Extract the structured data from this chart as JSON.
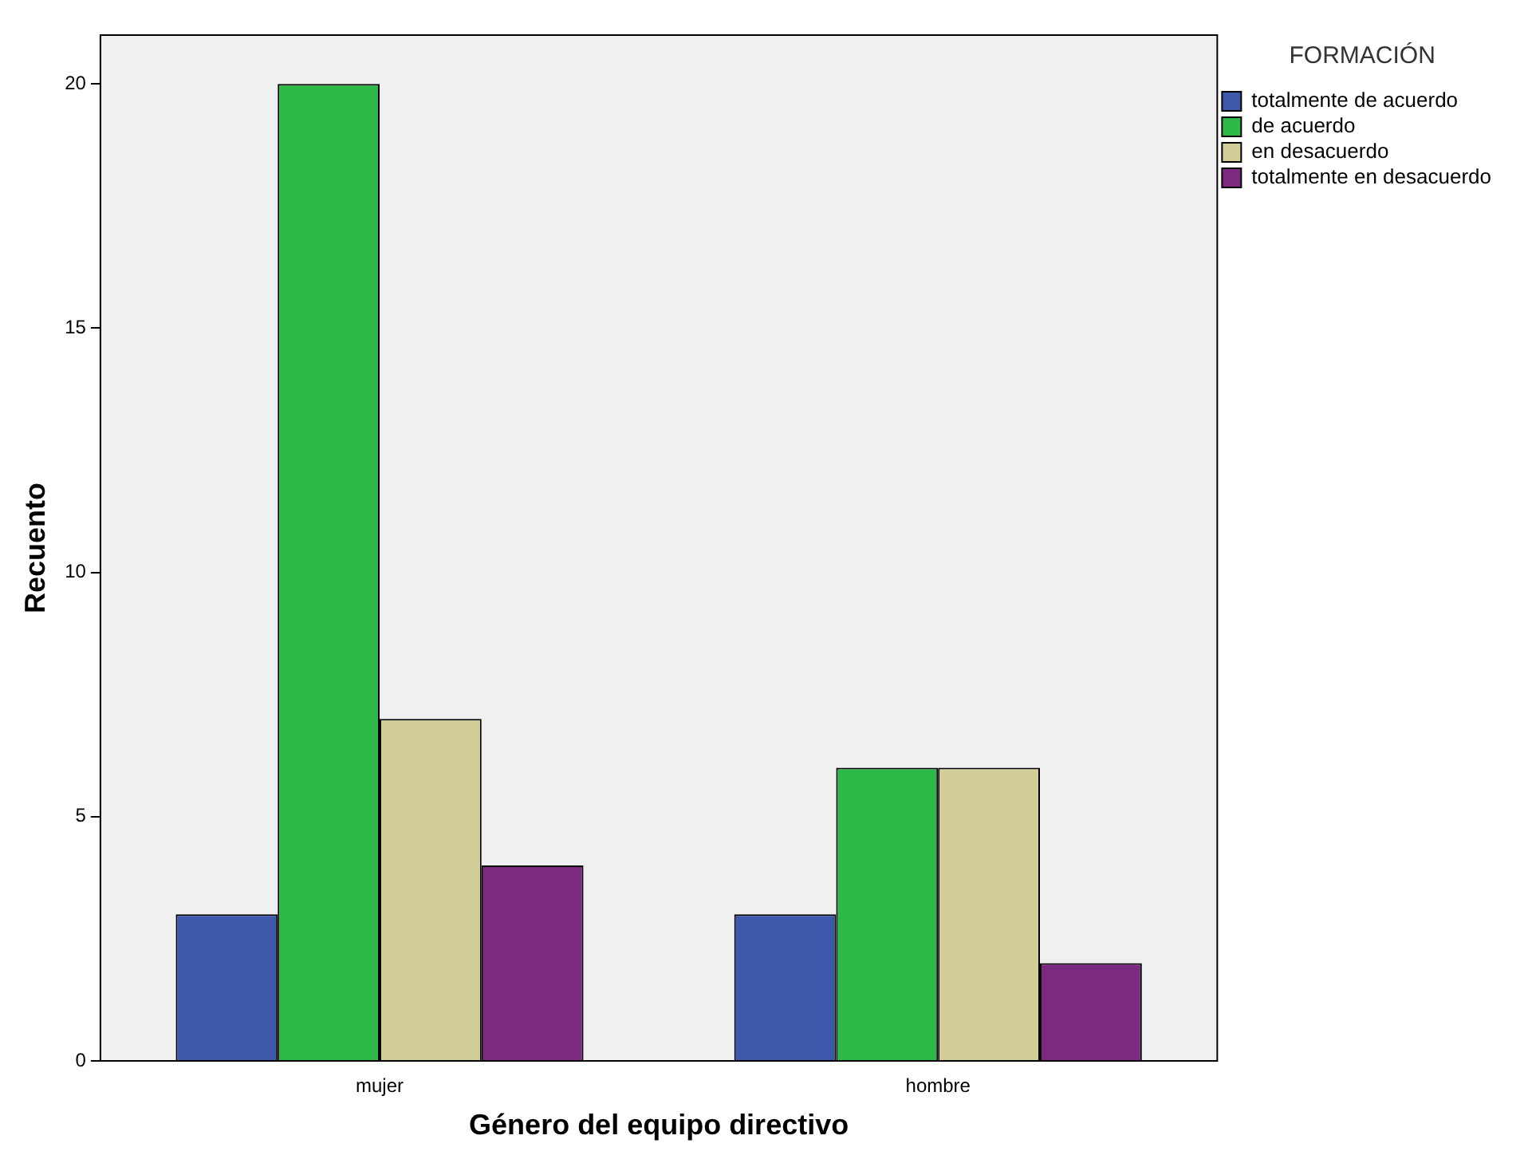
{
  "chart_data": {
    "type": "bar",
    "xlabel": "Género del equipo directivo",
    "ylabel": "Recuento",
    "legend_title": "FORMACIÓN",
    "categories": [
      "mujer",
      "hombre"
    ],
    "series": [
      {
        "name": "totalmente de acuerdo",
        "color": "#3e58ac",
        "values": [
          3,
          3
        ]
      },
      {
        "name": "de acuerdo",
        "color": "#2eb848",
        "values": [
          20,
          6
        ]
      },
      {
        "name": "en desacuerdo",
        "color": "#d3ce97",
        "values": [
          7,
          6
        ]
      },
      {
        "name": "totalmente en desacuerdo",
        "color": "#7b2a7f",
        "values": [
          4,
          2
        ]
      }
    ],
    "ylim": [
      0,
      21
    ],
    "yticks": [
      0,
      5,
      10,
      15,
      20
    ],
    "grid": false,
    "legend": "top right"
  }
}
